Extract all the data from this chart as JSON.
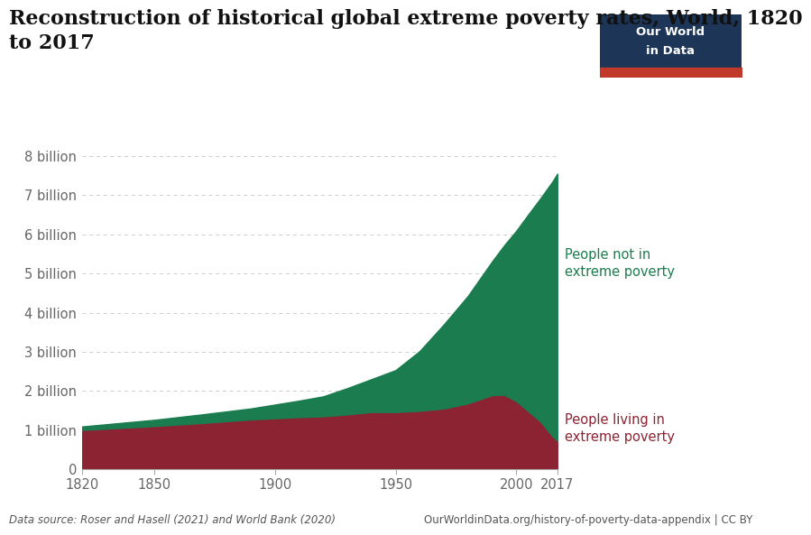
{
  "title": "Reconstruction of historical global extreme poverty rates, World, 1820\nto 2017",
  "title_fontsize": 16,
  "background_color": "#ffffff",
  "plot_background": "#ffffff",
  "grid_color": "#cccccc",
  "poverty_color": "#8b2332",
  "not_poverty_color": "#1a7c4f",
  "years": [
    1820,
    1850,
    1870,
    1890,
    1900,
    1910,
    1920,
    1930,
    1940,
    1950,
    1960,
    1970,
    1980,
    1990,
    1995,
    2000,
    2005,
    2010,
    2015,
    2017
  ],
  "total_pop": [
    1.09,
    1.26,
    1.4,
    1.55,
    1.65,
    1.75,
    1.86,
    2.07,
    2.3,
    2.53,
    3.02,
    3.7,
    4.43,
    5.31,
    5.72,
    6.09,
    6.51,
    6.92,
    7.35,
    7.55
  ],
  "in_poverty": [
    1.0,
    1.1,
    1.18,
    1.27,
    1.3,
    1.33,
    1.35,
    1.4,
    1.46,
    1.46,
    1.49,
    1.55,
    1.68,
    1.89,
    1.9,
    1.74,
    1.48,
    1.22,
    0.84,
    0.73
  ],
  "ylim_top": 8.3,
  "yticks": [
    0,
    1,
    2,
    3,
    4,
    5,
    6,
    7,
    8
  ],
  "ytick_labels": [
    "0",
    "1 billion",
    "2 billion",
    "3 billion",
    "4 billion",
    "5 billion",
    "6 billion",
    "7 billion",
    "8 billion"
  ],
  "xticks": [
    1820,
    1850,
    1900,
    1950,
    2000,
    2017
  ],
  "datasource_left": "Data source: Roser and Hasell (2021) and World Bank (2020)",
  "datasource_right": "OurWorldinData.org/history-of-poverty-data-appendix | CC BY",
  "label_not_poverty": "People not in\nextreme poverty",
  "label_poverty": "People living in\nextreme poverty",
  "label_not_poverty_color": "#1a7c4f",
  "label_poverty_color": "#8b2332",
  "owid_box_color": "#1d3557",
  "owid_text_color": "#ffffff",
  "owid_red_color": "#c0392b",
  "tick_color": "#666666",
  "spine_color": "#aaaaaa"
}
